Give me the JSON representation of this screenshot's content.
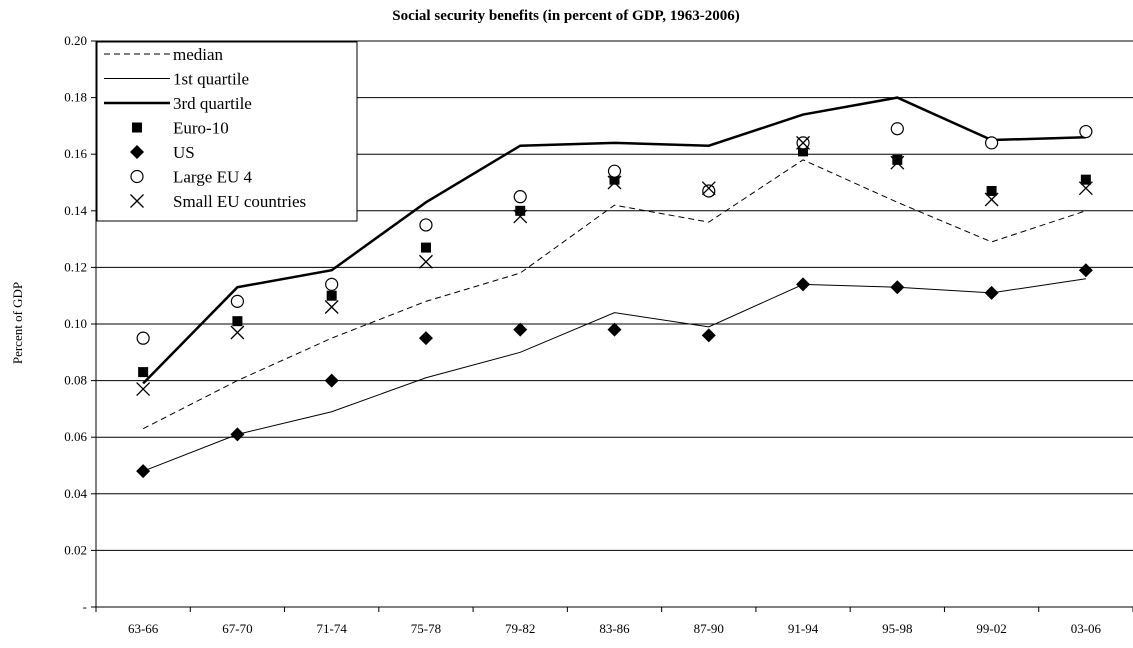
{
  "chart_data": {
    "type": "line",
    "title": "Social security benefits (in percent of GDP, 1963-2006)",
    "xlabel": "",
    "ylabel": "Percent of GDP",
    "categories": [
      "63-66",
      "67-70",
      "71-74",
      "75-78",
      "79-82",
      "83-86",
      "87-90",
      "91-94",
      "95-98",
      "99-02",
      "03-06"
    ],
    "ylim": [
      0,
      0.2
    ],
    "yticks": [
      0,
      0.02,
      0.04,
      0.06,
      0.08,
      0.1,
      0.12,
      0.14,
      0.16,
      0.18,
      0.2
    ],
    "ytick_labels": [
      "-",
      "0.02",
      "0.04",
      "0.06",
      "0.08",
      "0.10",
      "0.12",
      "0.14",
      "0.16",
      "0.18",
      "0.20"
    ],
    "grid": true,
    "legend_position": "top-left",
    "series": [
      {
        "name": "median",
        "style": "dashed-line",
        "values": [
          0.063,
          0.08,
          0.095,
          0.108,
          0.118,
          0.142,
          0.136,
          0.158,
          0.143,
          0.129,
          0.14
        ]
      },
      {
        "name": "1st quartile",
        "style": "thin-line",
        "values": [
          0.048,
          0.061,
          0.069,
          0.081,
          0.09,
          0.104,
          0.099,
          0.114,
          0.113,
          0.111,
          0.116
        ]
      },
      {
        "name": "3rd quartile",
        "style": "thick-line",
        "values": [
          0.079,
          0.113,
          0.119,
          0.143,
          0.163,
          0.164,
          0.163,
          0.174,
          0.18,
          0.165,
          0.166
        ]
      },
      {
        "name": "Euro-10",
        "style": "square",
        "values": [
          0.083,
          0.101,
          0.11,
          0.127,
          0.14,
          0.151,
          0.147,
          0.161,
          0.158,
          0.147,
          0.151
        ]
      },
      {
        "name": "US",
        "style": "diamond",
        "values": [
          0.048,
          0.061,
          0.08,
          0.095,
          0.098,
          0.098,
          0.096,
          0.114,
          0.113,
          0.111,
          0.119
        ]
      },
      {
        "name": "Large EU 4",
        "style": "circle",
        "values": [
          0.095,
          0.108,
          0.114,
          0.135,
          0.145,
          0.154,
          0.147,
          0.164,
          0.169,
          0.164,
          0.168
        ]
      },
      {
        "name": "Small EU countries",
        "style": "x",
        "values": [
          0.077,
          0.097,
          0.106,
          0.122,
          0.138,
          0.15,
          0.148,
          0.164,
          0.157,
          0.144,
          0.148
        ]
      }
    ]
  }
}
